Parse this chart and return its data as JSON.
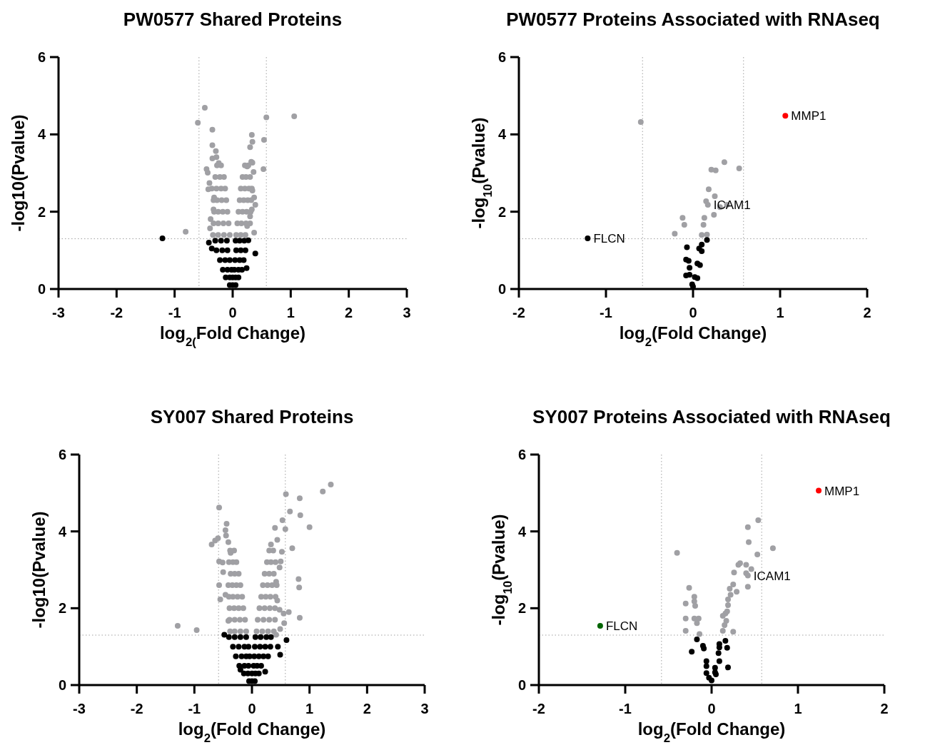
{
  "chart_data": [
    {
      "type": "scatter",
      "title": "PW0577 Shared Proteins",
      "xlabel": "log$_{2(}$Fold Change)",
      "ylabel": "-log10(Pvalue)",
      "xlim": [
        -3,
        3
      ],
      "xticks": [
        -3,
        -2,
        -1,
        0,
        1,
        2,
        3
      ],
      "ylim": [
        0,
        6
      ],
      "yticks": [
        0,
        2,
        4,
        6
      ],
      "grid": false,
      "marker": "circle",
      "ref_lines": [
        {
          "axis": "x",
          "value": -0.58,
          "color": "#a0a0a0",
          "line_style": "dotted"
        },
        {
          "axis": "x",
          "value": 0.58,
          "color": "#a0a0a0",
          "line_style": "dotted"
        },
        {
          "axis": "y",
          "value": 1.3,
          "color": "#a0a0a0",
          "line_style": "dotted"
        }
      ],
      "series": [
        {
          "color": "#a0a0a4",
          "x": [
            -0.48,
            -0.6,
            -0.35,
            0.58,
            1.06,
            0.33,
            0.34,
            0.3,
            0.54,
            0.53,
            -0.81,
            0.37,
            -0.35,
            -0.29,
            -0.28,
            -0.35,
            -0.45,
            -0.43,
            -0.24,
            -0.4,
            -0.42,
            -0.32,
            -0.33,
            -0.38,
            -0.39,
            0.32,
            0.34,
            0.25,
            0.36,
            0.34,
            0.37,
            0.39,
            0.33,
            0.3,
            0.25,
            -0.05,
            -0.15,
            -0.25,
            -0.34,
            -0.07,
            -0.16,
            -0.25,
            -0.33,
            -0.09,
            -0.17,
            -0.25,
            -0.32,
            -0.11,
            -0.19,
            -0.27,
            -0.33,
            -0.13,
            -0.2,
            -0.28,
            -0.36,
            -0.15,
            -0.22,
            -0.3,
            -0.2,
            -0.27,
            0.06,
            0.14,
            0.22,
            0.08,
            0.15,
            0.23,
            0.3,
            0.1,
            0.17,
            0.24,
            0.31,
            0.12,
            0.19,
            0.26,
            0.32,
            0.14,
            0.21,
            0.28,
            0.33,
            0.17,
            0.23,
            0.3,
            0.21,
            0.27
          ],
          "values": [
            4.69,
            4.3,
            4.12,
            4.44,
            4.47,
            3.99,
            3.81,
            3.67,
            3.86,
            3.1,
            1.48,
            1.46,
            3.72,
            3.57,
            3.41,
            3.38,
            3.1,
            3.01,
            3.26,
            2.74,
            2.58,
            2.37,
            2.06,
            1.81,
            1.57,
            3.29,
            3.27,
            3.17,
            3.03,
            2.55,
            2.37,
            2.18,
            2.06,
            1.88,
            1.63,
            1.4,
            1.4,
            1.4,
            1.4,
            1.7,
            1.7,
            1.7,
            1.7,
            2.0,
            2.0,
            2.0,
            2.0,
            2.3,
            2.3,
            2.3,
            2.3,
            2.6,
            2.6,
            2.6,
            2.6,
            2.9,
            2.9,
            2.9,
            3.2,
            3.2,
            1.4,
            1.4,
            1.4,
            1.7,
            1.7,
            1.7,
            1.7,
            2.0,
            2.0,
            2.0,
            2.0,
            2.3,
            2.3,
            2.3,
            2.3,
            2.6,
            2.6,
            2.6,
            2.6,
            2.9,
            2.9,
            2.9,
            3.2,
            3.2
          ]
        },
        {
          "color": "#000000",
          "x": [
            -1.21,
            -0.41,
            -0.36,
            0.39,
            0.27,
            0.24,
            -0.3,
            -0.2,
            -0.1,
            0.05,
            0.12,
            0.2,
            -0.28,
            -0.18,
            -0.09,
            0.06,
            0.14,
            0.22,
            -0.22,
            -0.13,
            -0.05,
            0.04,
            0.12,
            0.19,
            -0.17,
            -0.09,
            -0.02,
            0.03,
            0.1,
            0.16,
            -0.12,
            -0.05,
            0,
            0.05,
            0.1,
            -0.05,
            0,
            0.05
          ],
          "values": [
            1.31,
            1.2,
            1.05,
            0.92,
            1.26,
            0.54,
            1.25,
            1.25,
            1.25,
            1.25,
            1.25,
            1.25,
            1.0,
            1.0,
            1.0,
            1.0,
            1.0,
            1.0,
            0.75,
            0.75,
            0.75,
            0.75,
            0.75,
            0.75,
            0.5,
            0.5,
            0.5,
            0.5,
            0.5,
            0.5,
            0.3,
            0.3,
            0.3,
            0.3,
            0.3,
            0.1,
            0.1,
            0.1
          ]
        }
      ]
    },
    {
      "type": "scatter",
      "title": "PW0577 Proteins Associated with RNAseq",
      "xlabel": "log$_{2}$(Fold Change)",
      "ylabel": "-log$_{10}$(Pvalue)",
      "xlim": [
        -2,
        2
      ],
      "xticks": [
        -2,
        -1,
        0,
        1,
        2
      ],
      "ylim": [
        0,
        6
      ],
      "yticks": [
        0,
        2,
        4,
        6
      ],
      "grid": false,
      "marker": "circle",
      "ref_lines": [
        {
          "axis": "x",
          "value": -0.58,
          "color": "#a0a0a0",
          "line_style": "dotted"
        },
        {
          "axis": "x",
          "value": 0.58,
          "color": "#a0a0a0",
          "line_style": "dotted"
        },
        {
          "axis": "y",
          "value": 1.3,
          "color": "#a0a0a0",
          "line_style": "dotted"
        }
      ],
      "annotations": [
        {
          "text": "MMP1",
          "x": 1.06,
          "y": 4.48
        },
        {
          "text": "ICAM1",
          "x": 0.17,
          "y": 2.18
        },
        {
          "text": "FLCN",
          "x": -1.21,
          "y": 1.31
        }
      ],
      "series": [
        {
          "color": "#a0a0a4",
          "x": [
            -0.6,
            0.36,
            0.21,
            0.26,
            0.53,
            0.18,
            0.25,
            0.15,
            0.17,
            0.31,
            0.39,
            0.13,
            0.24,
            -0.12,
            -0.1,
            0.12,
            -0.21,
            0.1,
            0.16
          ],
          "values": [
            4.32,
            3.28,
            3.09,
            3.07,
            3.12,
            2.58,
            2.4,
            2.27,
            2.18,
            2.12,
            2.18,
            1.84,
            1.92,
            1.84,
            1.66,
            1.66,
            1.43,
            1.4,
            1.41
          ]
        },
        {
          "color": "#000000",
          "x": [
            -1.21,
            0.16,
            0.1,
            -0.07,
            0.07,
            0.1,
            -0.08,
            -0.05,
            0.05,
            0.08,
            -0.04,
            -0.08,
            -0.04,
            0.02,
            0.05,
            -0.01,
            0
          ],
          "values": [
            1.31,
            1.27,
            1.15,
            1.08,
            1.05,
            0.98,
            0.76,
            0.73,
            0.66,
            0.62,
            0.55,
            0.35,
            0.37,
            0.31,
            0.28,
            0.12,
            0.06
          ]
        },
        {
          "color": "#ff0000",
          "x": [
            1.06
          ],
          "values": [
            4.48
          ]
        }
      ]
    },
    {
      "type": "scatter",
      "title": "SY007 Shared Proteins",
      "xlabel": "log$_{2}$(Fold Change)",
      "ylabel": "-log10(Pvalue)",
      "xlim": [
        -3,
        3
      ],
      "xticks": [
        -3,
        -2,
        -1,
        0,
        1,
        2,
        3
      ],
      "ylim": [
        0,
        6
      ],
      "yticks": [
        0,
        2,
        4,
        6
      ],
      "grid": false,
      "marker": "circle",
      "ref_lines": [
        {
          "axis": "x",
          "value": -0.58,
          "color": "#a0a0a0",
          "line_style": "dotted"
        },
        {
          "axis": "x",
          "value": 0.58,
          "color": "#a0a0a0",
          "line_style": "dotted"
        },
        {
          "axis": "y",
          "value": 1.3,
          "color": "#a0a0a0",
          "line_style": "dotted"
        }
      ],
      "series": [
        {
          "color": "#a0a0a4",
          "x": [
            1.37,
            1.23,
            0.59,
            0.83,
            0.66,
            0.84,
            1.0,
            0.53,
            0.58,
            0.7,
            0.81,
            0.82,
            0.83,
            0.64,
            0.55,
            0.56,
            0.42,
            0.49,
            -0.57,
            -0.44,
            -0.46,
            -0.45,
            -0.59,
            -0.64,
            -0.7,
            -0.41,
            -0.37,
            -0.57,
            -0.51,
            -0.5,
            -0.57,
            -0.46,
            -0.55,
            -1.29,
            -0.96,
            -0.41,
            0.4,
            0.44,
            0.33,
            0.52,
            0.5,
            0.48,
            0.42,
            0.44,
            0.48,
            -0.1,
            -0.2,
            -0.3,
            -0.38,
            -0.12,
            -0.21,
            -0.3,
            -0.39,
            -0.15,
            -0.23,
            -0.31,
            -0.39,
            -0.17,
            -0.25,
            -0.33,
            -0.4,
            -0.2,
            -0.27,
            -0.34,
            -0.41,
            -0.23,
            -0.3,
            -0.37,
            -0.27,
            -0.33,
            -0.4,
            -0.31,
            -0.38,
            0.08,
            0.18,
            0.28,
            0.38,
            0.1,
            0.2,
            0.3,
            0.4,
            0.13,
            0.22,
            0.31,
            0.4,
            0.16,
            0.24,
            0.32,
            0.41,
            0.19,
            0.27,
            0.35,
            0.43,
            0.22,
            0.3,
            0.38,
            0.26,
            0.33,
            0.41,
            0.3,
            0.37
          ],
          "values": [
            5.22,
            5.04,
            4.97,
            4.86,
            4.52,
            4.42,
            4.11,
            4.29,
            4.06,
            3.56,
            2.76,
            2.54,
            1.75,
            1.9,
            1.86,
            1.61,
            1.31,
            1.46,
            4.62,
            4.2,
            4.03,
            3.89,
            3.82,
            3.76,
            3.66,
            3.72,
            3.44,
            3.22,
            3.19,
            2.94,
            2.6,
            2.35,
            2.23,
            1.54,
            1.43,
            1.67,
            4.09,
            3.78,
            3.66,
            3.47,
            3.22,
            3.06,
            2.69,
            2.2,
            1.96,
            1.4,
            1.4,
            1.4,
            1.4,
            1.7,
            1.7,
            1.7,
            1.7,
            2.0,
            2.0,
            2.0,
            2.0,
            2.3,
            2.3,
            2.3,
            2.3,
            2.6,
            2.6,
            2.6,
            2.6,
            2.9,
            2.9,
            2.9,
            3.2,
            3.2,
            3.2,
            3.5,
            3.5,
            1.4,
            1.4,
            1.4,
            1.4,
            1.7,
            1.7,
            1.7,
            1.7,
            2.0,
            2.0,
            2.0,
            2.0,
            2.3,
            2.3,
            2.3,
            2.3,
            2.6,
            2.6,
            2.6,
            2.6,
            2.9,
            2.9,
            2.9,
            3.2,
            3.2,
            3.2,
            3.5,
            3.5
          ]
        },
        {
          "color": "#000000",
          "x": [
            -0.48,
            0.6,
            0.49,
            0.45,
            0.23,
            -0.2,
            -0.4,
            -0.3,
            -0.2,
            -0.1,
            0.06,
            0.15,
            0.25,
            0.33,
            -0.33,
            -0.23,
            -0.13,
            -0.06,
            0.05,
            0.14,
            0.23,
            0.32,
            -0.28,
            -0.18,
            -0.1,
            -0.04,
            0.04,
            0.12,
            0.2,
            0.28,
            -0.22,
            -0.13,
            -0.06,
            0.03,
            0.09,
            0.16,
            -0.14,
            -0.07,
            0,
            0.06,
            0.12,
            -0.05,
            0,
            0.05
          ],
          "values": [
            1.31,
            1.17,
            0.79,
            1.0,
            0.35,
            0.4,
            1.25,
            1.25,
            1.25,
            1.25,
            1.25,
            1.25,
            1.25,
            1.25,
            1.0,
            1.0,
            1.0,
            1.0,
            1.0,
            1.0,
            1.0,
            1.0,
            0.75,
            0.75,
            0.75,
            0.75,
            0.75,
            0.75,
            0.75,
            0.75,
            0.5,
            0.5,
            0.5,
            0.5,
            0.5,
            0.5,
            0.3,
            0.3,
            0.3,
            0.3,
            0.3,
            0.1,
            0.1,
            0.1
          ]
        }
      ]
    },
    {
      "type": "scatter",
      "title": "SY007 Proteins Associated with RNAseq",
      "xlabel": "log$_{2}$(Fold Change)",
      "ylabel": "-log$_{10}$(Pvalue)",
      "xlim": [
        -2,
        2
      ],
      "xticks": [
        -2,
        -1,
        0,
        1,
        2
      ],
      "ylim": [
        0,
        6
      ],
      "yticks": [
        0,
        2,
        4,
        6
      ],
      "grid": false,
      "marker": "circle",
      "ref_lines": [
        {
          "axis": "x",
          "value": -0.58,
          "color": "#a0a0a0",
          "line_style": "dotted"
        },
        {
          "axis": "x",
          "value": 0.58,
          "color": "#a0a0a0",
          "line_style": "dotted"
        },
        {
          "axis": "y",
          "value": 1.3,
          "color": "#a0a0a0",
          "line_style": "dotted"
        }
      ],
      "annotations": [
        {
          "text": "MMP1",
          "x": 1.24,
          "y": 5.06
        },
        {
          "text": "ICAM1",
          "x": 0.42,
          "y": 2.85
        },
        {
          "text": "FLCN",
          "x": -1.29,
          "y": 1.54
        }
      ],
      "series": [
        {
          "color": "#a0a0a4",
          "x": [
            0.54,
            0.42,
            0.43,
            0.71,
            0.53,
            -0.4,
            0.33,
            0.31,
            0.4,
            0.46,
            0.4,
            0.42,
            0.26,
            0.42,
            0.25,
            0.29,
            0.21,
            0.22,
            0.19,
            0.19,
            0.18,
            0.16,
            0.17,
            0.13,
            0.15,
            0.13,
            0.25,
            -0.26,
            -0.2,
            -0.2,
            -0.19,
            -0.3,
            -0.3,
            -0.2,
            -0.15,
            -0.17,
            -0.3,
            -0.14
          ],
          "values": [
            4.29,
            4.11,
            3.72,
            3.56,
            3.4,
            3.44,
            3.17,
            3.13,
            3.13,
            3.02,
            2.91,
            2.85,
            2.93,
            2.56,
            2.62,
            2.43,
            2.51,
            2.35,
            2.23,
            2.08,
            1.92,
            1.86,
            1.67,
            1.8,
            1.56,
            1.41,
            1.39,
            2.53,
            2.3,
            2.18,
            2.06,
            2.12,
            1.73,
            1.73,
            1.73,
            1.61,
            1.41,
            1.33
          ]
        },
        {
          "color": "#000000",
          "x": [
            -0.17,
            -0.23,
            -0.1,
            -0.09,
            0.16,
            0.09,
            0.09,
            0.08,
            0.18,
            0.09,
            0.19,
            -0.06,
            -0.06,
            0.04,
            0.04,
            -0.06,
            -0.03,
            0,
            0.05
          ],
          "values": [
            1.19,
            0.87,
            1.02,
            0.95,
            1.15,
            1.07,
            0.98,
            0.83,
            0.97,
            0.62,
            0.46,
            0.62,
            0.49,
            0.45,
            0.33,
            0.31,
            0.19,
            0.12,
            0.28
          ]
        },
        {
          "color": "#ff0000",
          "x": [
            1.24
          ],
          "values": [
            5.06
          ]
        },
        {
          "color": "#006400",
          "x": [
            -1.29
          ],
          "values": [
            1.54
          ]
        }
      ]
    }
  ]
}
